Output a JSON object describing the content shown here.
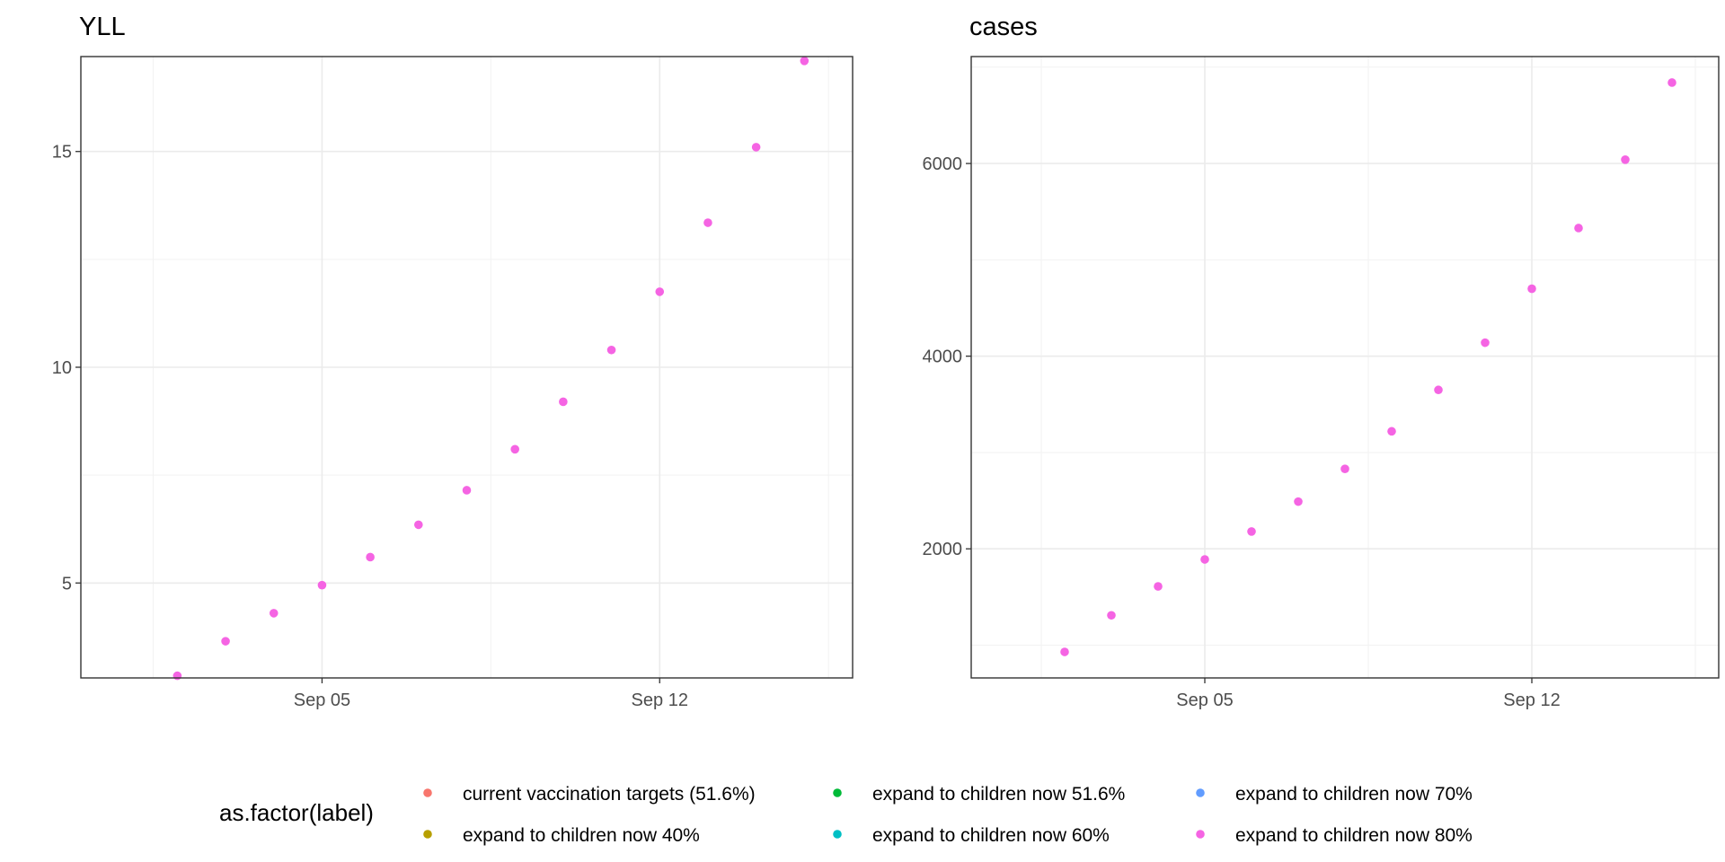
{
  "chart_data": [
    {
      "type": "scatter",
      "title": "YLL",
      "xlabel": "",
      "ylabel": "",
      "x_type": "date",
      "x_ticks": [
        "2021-09-05",
        "2021-09-12"
      ],
      "x_tick_labels": [
        "Sep 05",
        "Sep 12"
      ],
      "y_ticks": [
        5,
        10,
        15
      ],
      "y_tick_labels": [
        "5",
        "10",
        "15"
      ],
      "xlim": [
        "2021-08-31",
        "2021-09-16"
      ],
      "ylim": [
        2.8,
        17.2
      ],
      "grid": true,
      "series": [
        {
          "name": "expand to children now 80%",
          "color": "#F564E3",
          "points": [
            {
              "x": "2021-09-02",
              "y": 2.85
            },
            {
              "x": "2021-09-03",
              "y": 3.65
            },
            {
              "x": "2021-09-04",
              "y": 4.3
            },
            {
              "x": "2021-09-05",
              "y": 4.95
            },
            {
              "x": "2021-09-06",
              "y": 5.6
            },
            {
              "x": "2021-09-07",
              "y": 6.35
            },
            {
              "x": "2021-09-08",
              "y": 7.15
            },
            {
              "x": "2021-09-09",
              "y": 8.1
            },
            {
              "x": "2021-09-10",
              "y": 9.2
            },
            {
              "x": "2021-09-11",
              "y": 10.4
            },
            {
              "x": "2021-09-12",
              "y": 11.75
            },
            {
              "x": "2021-09-13",
              "y": 13.35
            },
            {
              "x": "2021-09-14",
              "y": 15.1
            },
            {
              "x": "2021-09-15",
              "y": 17.1
            }
          ]
        }
      ]
    },
    {
      "type": "scatter",
      "title": "cases",
      "xlabel": "",
      "ylabel": "",
      "x_type": "date",
      "x_ticks": [
        "2021-09-05",
        "2021-09-12"
      ],
      "x_tick_labels": [
        "Sep 05",
        "Sep 12"
      ],
      "y_ticks": [
        2000,
        4000,
        6000
      ],
      "y_tick_labels": [
        "2000",
        "4000",
        "6000"
      ],
      "xlim": [
        "2021-08-31",
        "2021-09-16"
      ],
      "ylim": [
        660,
        7110
      ],
      "grid": true,
      "series": [
        {
          "name": "expand to children now 80%",
          "color": "#F564E3",
          "points": [
            {
              "x": "2021-09-02",
              "y": 930
            },
            {
              "x": "2021-09-03",
              "y": 1310
            },
            {
              "x": "2021-09-04",
              "y": 1610
            },
            {
              "x": "2021-09-05",
              "y": 1890
            },
            {
              "x": "2021-09-06",
              "y": 2180
            },
            {
              "x": "2021-09-07",
              "y": 2490
            },
            {
              "x": "2021-09-08",
              "y": 2830
            },
            {
              "x": "2021-09-09",
              "y": 3220
            },
            {
              "x": "2021-09-10",
              "y": 3650
            },
            {
              "x": "2021-09-11",
              "y": 4140
            },
            {
              "x": "2021-09-12",
              "y": 4700
            },
            {
              "x": "2021-09-13",
              "y": 5330
            },
            {
              "x": "2021-09-14",
              "y": 6040
            },
            {
              "x": "2021-09-15",
              "y": 6840
            }
          ]
        }
      ]
    }
  ],
  "legend": {
    "title": "as.factor(label)",
    "placement": "bottom",
    "items": [
      {
        "label": "current vaccination targets (51.6%)",
        "color": "#F8766D"
      },
      {
        "label": "expand to children now 40%",
        "color": "#B79F00"
      },
      {
        "label": "expand to children now 51.6%",
        "color": "#00BA38"
      },
      {
        "label": "expand to children now 60%",
        "color": "#00BFC4"
      },
      {
        "label": "expand to children now 70%",
        "color": "#619CFF"
      },
      {
        "label": "expand to children now 80%",
        "color": "#F564E3"
      }
    ]
  }
}
